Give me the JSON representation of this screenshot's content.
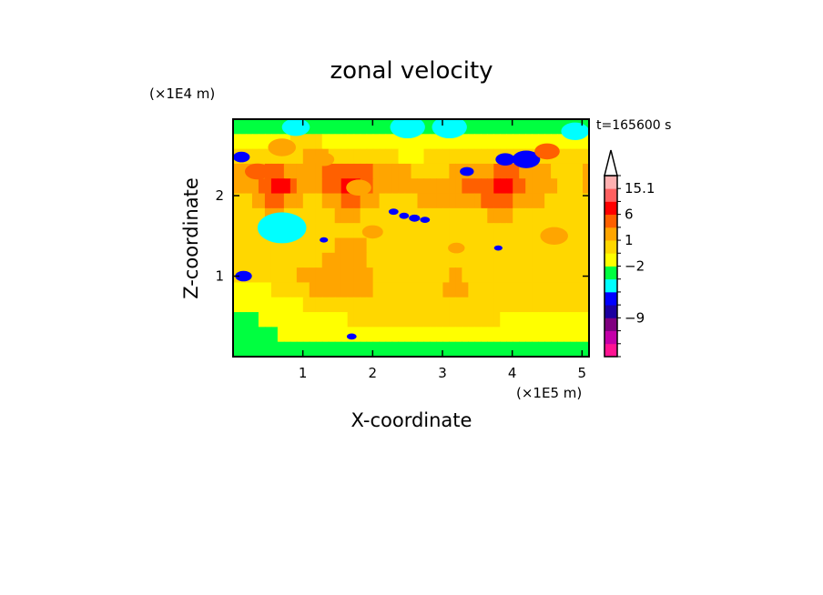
{
  "chart_data": {
    "type": "heatmap",
    "title": "zonal velocity",
    "xlabel": "X-coordinate",
    "ylabel": "Z-coordinate",
    "x_unit": "(×1E5 m)",
    "y_unit": "(×1E4 m)",
    "time_label": "t=165600 s",
    "xlim": [
      0,
      5.1
    ],
    "ylim": [
      0,
      2.95
    ],
    "x_ticks": [
      {
        "value": 1,
        "label": "1"
      },
      {
        "value": 2,
        "label": "2"
      },
      {
        "value": 3,
        "label": "3"
      },
      {
        "value": 4,
        "label": "4"
      },
      {
        "value": 5,
        "label": "5"
      }
    ],
    "y_ticks": [
      {
        "value": 1,
        "label": "1"
      },
      {
        "value": 2,
        "label": "2"
      }
    ],
    "colorbar": {
      "bins": [
        {
          "color": "#ff1493"
        },
        {
          "color": "#c400a8"
        },
        {
          "color": "#800080"
        },
        {
          "color": "#1c00a0"
        },
        {
          "color": "#0000ff"
        },
        {
          "color": "#00ffff"
        },
        {
          "color": "#00ff40"
        },
        {
          "color": "#ffff00"
        },
        {
          "color": "#ffd700"
        },
        {
          "color": "#ffa500"
        },
        {
          "color": "#ff6000"
        },
        {
          "color": "#ff0000"
        },
        {
          "color": "#ff6060"
        },
        {
          "color": "#ffb0b0"
        }
      ],
      "labels": [
        {
          "text": "15.1",
          "bin_top": 13
        },
        {
          "text": "6",
          "bin_top": 11
        },
        {
          "text": "1",
          "bin_top": 9
        },
        {
          "text": "−2",
          "bin_top": 7
        },
        {
          "text": "−9",
          "bin_top": 3
        }
      ],
      "overflow_arrow": "top"
    },
    "field_rows": [
      "00000000000000000000000000000000000000000000000000000000",
      "11111111122222111111111111111111111111111111111111111111",
      "22222222222333322222222222111122222222222222222222222222",
      "33333444333333444444443333332222223333333444433333222223",
      "33334455543333444555443333333333333344444555443333322223",
      "22233444333222333444333222222333333333344444333332222222",
      "22222333222222223333222222222222222222223333222222222222",
      "22222222222222222222222222222222222222222222222222222222",
      "22222222222222223333322222222222222222222222222222222222",
      "22222222222222333333322222222222222222222222222222222222",
      "22222222223333333333332222222222223322222222222222222222",
      "11111122222233333333332222222222233332222222222222222222",
      "11111111111222222222222222222222222222222222222222222222",
      "00001111111111111122222222222222222222222211111111111111",
      "00000001111111111111111111111111111111111111111111111111",
      "00000000000000000000000000000000000000000000000000000000"
    ],
    "blobs": [
      {
        "x": 0.12,
        "z": 2.48,
        "r": 0.12,
        "level": 4
      },
      {
        "x": 0.35,
        "z": 2.3,
        "r": 0.18,
        "level": 10
      },
      {
        "x": 0.7,
        "z": 2.6,
        "r": 0.2,
        "level": 9
      },
      {
        "x": 1.3,
        "z": 2.45,
        "r": 0.15,
        "level": 9
      },
      {
        "x": 1.8,
        "z": 2.1,
        "r": 0.18,
        "level": 9
      },
      {
        "x": 2.3,
        "z": 1.8,
        "r": 0.07,
        "level": 4
      },
      {
        "x": 2.45,
        "z": 1.75,
        "r": 0.07,
        "level": 4
      },
      {
        "x": 2.6,
        "z": 1.72,
        "r": 0.08,
        "level": 4
      },
      {
        "x": 2.75,
        "z": 1.7,
        "r": 0.07,
        "level": 4
      },
      {
        "x": 3.35,
        "z": 2.3,
        "r": 0.1,
        "level": 4
      },
      {
        "x": 3.9,
        "z": 2.45,
        "r": 0.14,
        "level": 4
      },
      {
        "x": 4.2,
        "z": 2.45,
        "r": 0.2,
        "level": 4
      },
      {
        "x": 4.5,
        "z": 2.55,
        "r": 0.18,
        "level": 10
      },
      {
        "x": 3.8,
        "z": 1.35,
        "r": 0.06,
        "level": 4
      },
      {
        "x": 1.3,
        "z": 1.45,
        "r": 0.06,
        "level": 4
      },
      {
        "x": 1.7,
        "z": 0.25,
        "r": 0.07,
        "level": 4
      },
      {
        "x": 0.15,
        "z": 1.0,
        "r": 0.12,
        "level": 4
      },
      {
        "x": 0.7,
        "z": 1.6,
        "r": 0.35,
        "level": 5
      },
      {
        "x": 2.5,
        "z": 2.85,
        "r": 0.25,
        "level": 5
      },
      {
        "x": 3.1,
        "z": 2.85,
        "r": 0.25,
        "level": 5
      },
      {
        "x": 0.9,
        "z": 2.85,
        "r": 0.2,
        "level": 5
      },
      {
        "x": 4.9,
        "z": 2.8,
        "r": 0.2,
        "level": 5
      },
      {
        "x": 3.2,
        "z": 1.35,
        "r": 0.12,
        "level": 9
      },
      {
        "x": 2.0,
        "z": 1.55,
        "r": 0.15,
        "level": 9
      },
      {
        "x": 4.6,
        "z": 1.5,
        "r": 0.2,
        "level": 9
      }
    ]
  }
}
